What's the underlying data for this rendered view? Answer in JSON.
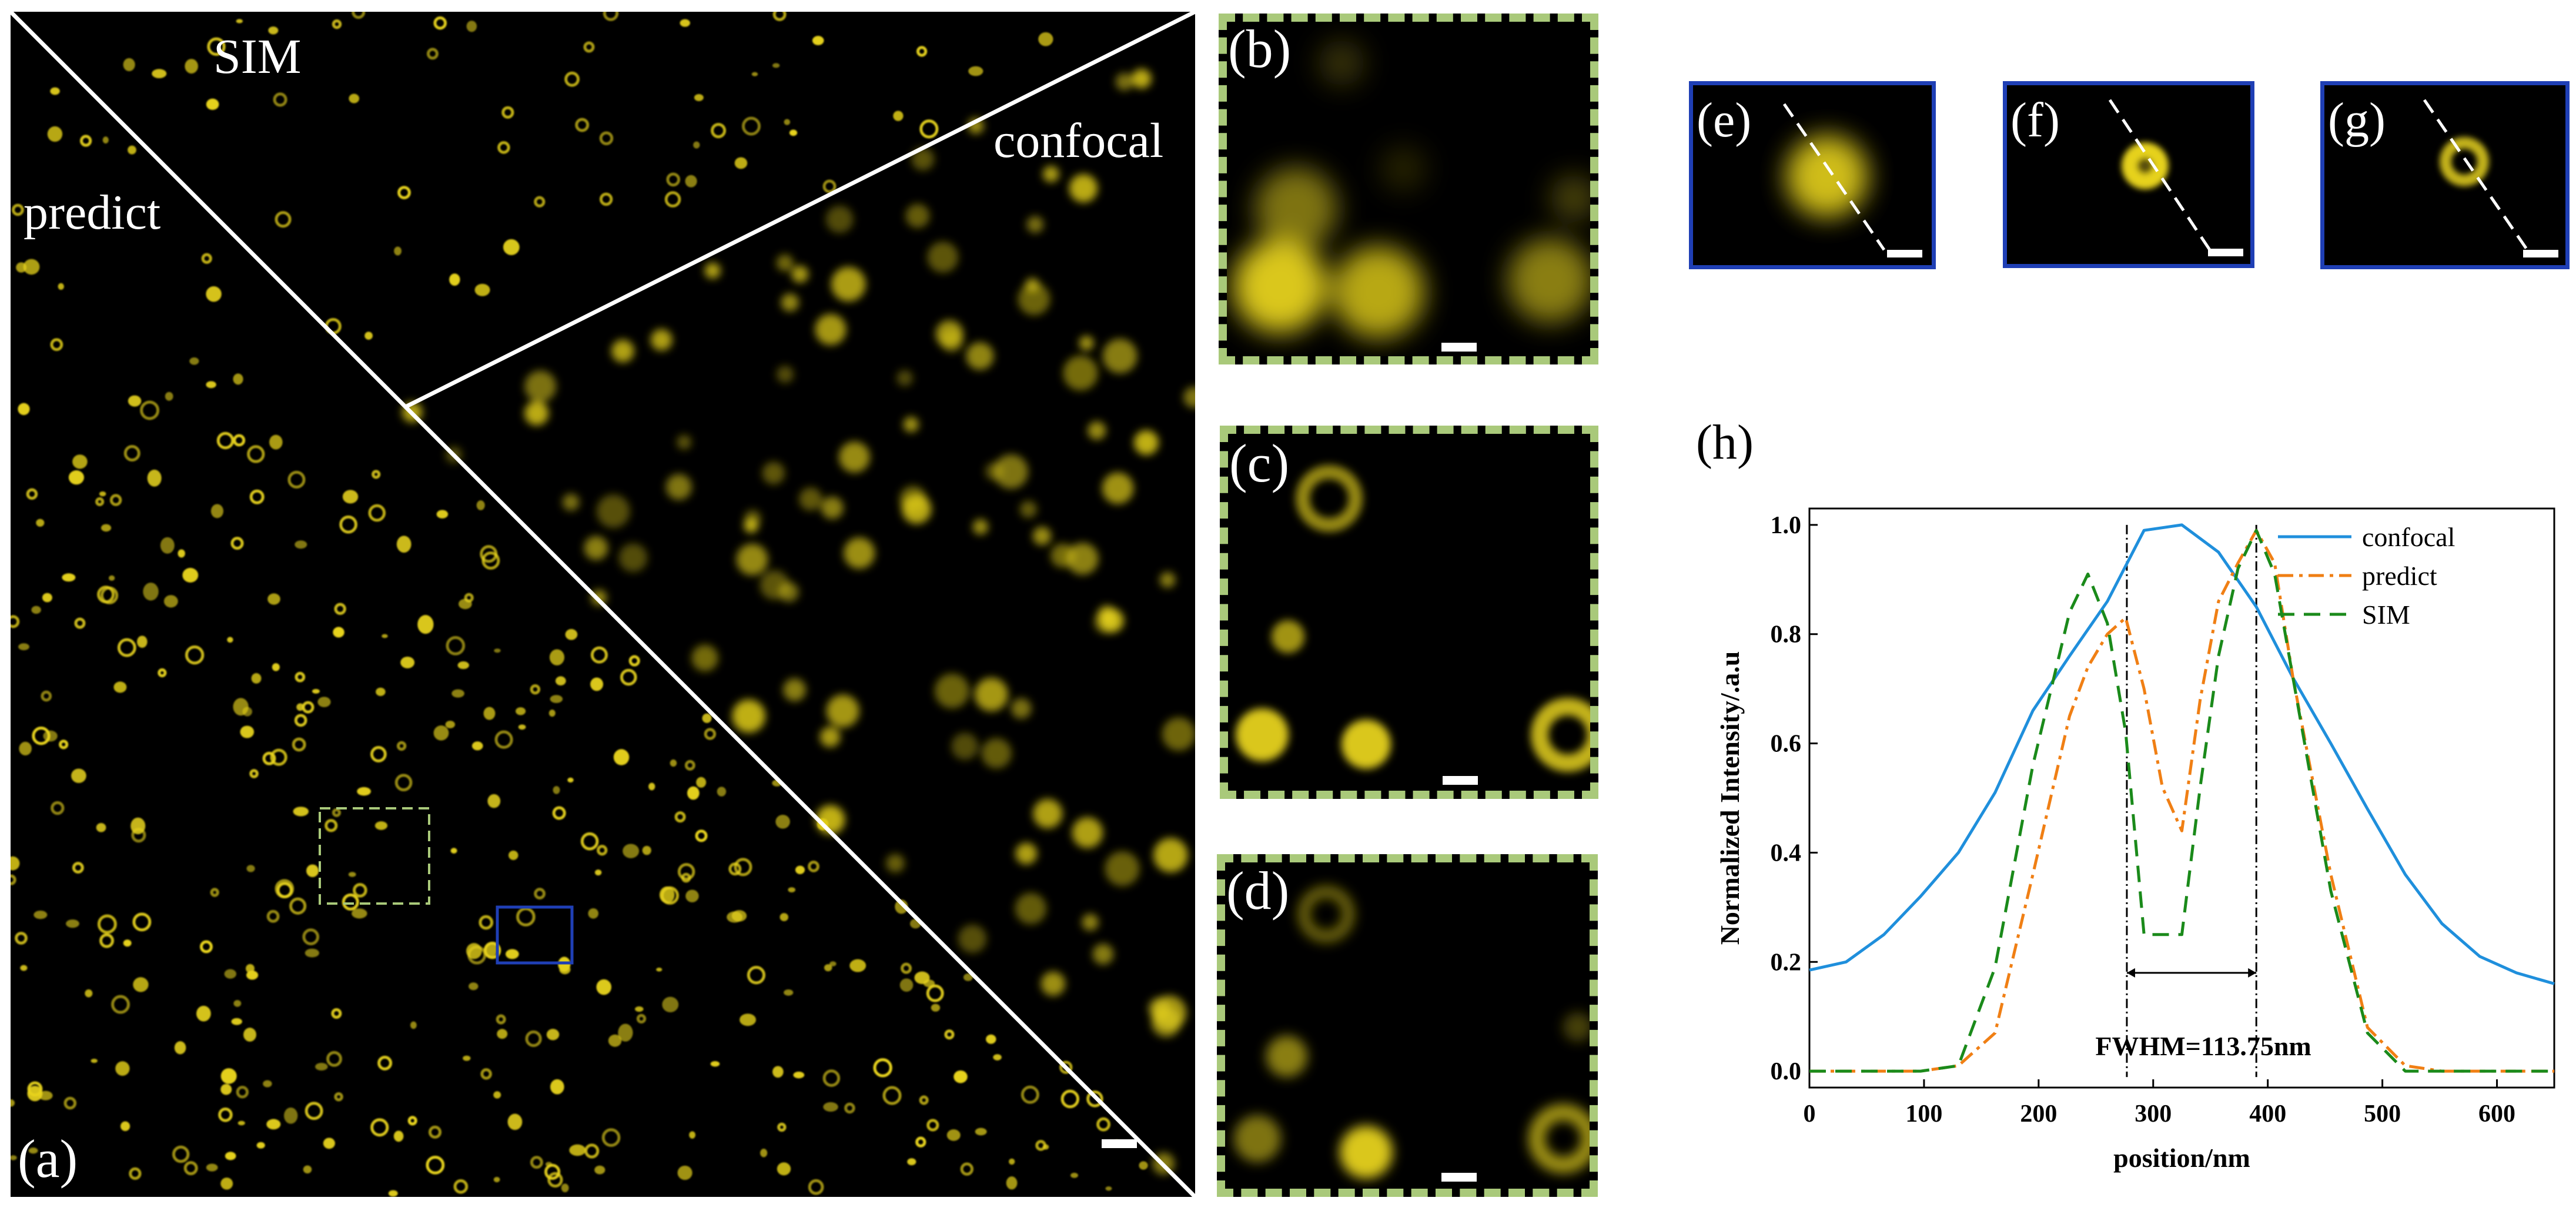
{
  "main_panel": {
    "label": "(a)",
    "region_labels": {
      "sim": "SIM",
      "predict": "predict",
      "confocal": "confocal"
    }
  },
  "insets": [
    {
      "label": "(b)"
    },
    {
      "label": "(c)"
    },
    {
      "label": "(d)"
    }
  ],
  "line_profiles": [
    {
      "label": "(e)"
    },
    {
      "label": "(f)"
    },
    {
      "label": "(g)"
    }
  ],
  "colors": {
    "signal": "#e6d21c",
    "inset_border": "#a9c97a",
    "line_border": "#1f3fb5",
    "confocal": "#1f8fdc",
    "predict": "#f07f14",
    "sim": "#1a8a1a"
  },
  "chart_data": {
    "type": "line",
    "panel_label": "(h)",
    "xlabel": "position/nm",
    "ylabel": "Normalized Intensity/.a.u",
    "xlim": [
      0,
      650
    ],
    "ylim": [
      -0.03,
      1.03
    ],
    "xticks": [
      0,
      100,
      200,
      300,
      400,
      500,
      600
    ],
    "yticks": [
      0.0,
      0.2,
      0.4,
      0.6,
      0.8,
      1.0
    ],
    "ytick_labels": [
      "0.0",
      "0.2",
      "0.4",
      "0.6",
      "0.8",
      "1.0"
    ],
    "legend_position": "top-right",
    "series": [
      {
        "name": "confocal",
        "style": "solid",
        "x": [
          0,
          32,
          65,
          97,
          130,
          162,
          195,
          227,
          260,
          292,
          325,
          357,
          390,
          422,
          455,
          487,
          520,
          552,
          585,
          617,
          650
        ],
        "y": [
          0.185,
          0.2,
          0.25,
          0.32,
          0.4,
          0.51,
          0.66,
          0.76,
          0.86,
          0.99,
          1.0,
          0.95,
          0.85,
          0.72,
          0.6,
          0.48,
          0.36,
          0.27,
          0.21,
          0.18,
          0.16
        ]
      },
      {
        "name": "predict",
        "style": "dashdot",
        "x": [
          0,
          32,
          65,
          97,
          130,
          162,
          195,
          227,
          243,
          260,
          276,
          292,
          308,
          325,
          341,
          357,
          374,
          390,
          406,
          422,
          455,
          487,
          520,
          552,
          585,
          617,
          650
        ],
        "y": [
          0,
          0,
          0,
          0,
          0.01,
          0.07,
          0.36,
          0.65,
          0.74,
          0.8,
          0.83,
          0.7,
          0.52,
          0.44,
          0.68,
          0.86,
          0.93,
          0.99,
          0.93,
          0.72,
          0.36,
          0.08,
          0.01,
          0,
          0,
          0,
          0
        ]
      },
      {
        "name": "SIM",
        "style": "dashed",
        "x": [
          0,
          32,
          65,
          97,
          130,
          162,
          195,
          227,
          243,
          260,
          276,
          292,
          308,
          325,
          341,
          357,
          374,
          390,
          406,
          422,
          455,
          487,
          520,
          552,
          585,
          617,
          650
        ],
        "y": [
          0,
          0,
          0,
          0,
          0.01,
          0.19,
          0.56,
          0.84,
          0.91,
          0.82,
          0.62,
          0.25,
          0.25,
          0.25,
          0.52,
          0.76,
          0.92,
          0.99,
          0.91,
          0.72,
          0.33,
          0.07,
          0,
          0,
          0,
          0,
          0
        ]
      }
    ],
    "markers": [
      277,
      390
    ],
    "annotation": {
      "text": "FWHM=113.75nm",
      "from": 277,
      "to": 390,
      "y_level": 0.18
    }
  }
}
